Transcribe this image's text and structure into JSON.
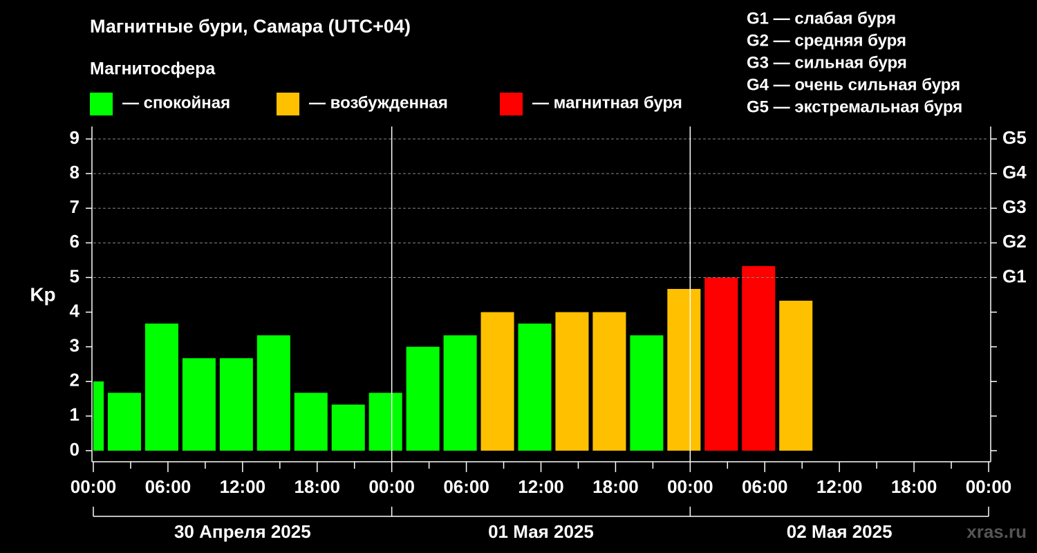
{
  "chart_data": {
    "type": "bar",
    "title": "Магнитные бури, Самара (UTC+04)",
    "subtitle": "Магнитосфера",
    "y_label": "Kp",
    "legend": [
      {
        "color": "#00ff00",
        "label": "— спокойная"
      },
      {
        "color": "#ffc000",
        "label": "— возбужденная"
      },
      {
        "color": "#ff0000",
        "label": "— магнитная буря"
      }
    ],
    "g_legend": [
      "G1 — слабая буря",
      "G2 — средняя буря",
      "G3 — сильная буря",
      "G4 — очень сильная буря",
      "G5 — экстремальная буря"
    ],
    "x": [
      -0.5,
      2.5,
      5.5,
      8.5,
      11.5,
      14.5,
      17.5,
      20.5,
      23.5,
      26.5,
      29.5,
      32.5,
      35.5,
      38.5,
      41.5,
      44.5,
      47.5,
      50.5,
      53.5,
      56.5
    ],
    "values": [
      2.0,
      1.67,
      3.67,
      2.67,
      2.67,
      3.33,
      1.67,
      1.33,
      1.67,
      3.0,
      3.33,
      4.0,
      3.67,
      4.0,
      4.0,
      3.33,
      4.67,
      5.0,
      5.33,
      4.33
    ],
    "colors": [
      "#00ff00",
      "#00ff00",
      "#00ff00",
      "#00ff00",
      "#00ff00",
      "#00ff00",
      "#00ff00",
      "#00ff00",
      "#00ff00",
      "#00ff00",
      "#00ff00",
      "#ffc000",
      "#00ff00",
      "#ffc000",
      "#ffc000",
      "#00ff00",
      "#ffc000",
      "#ff0000",
      "#ff0000",
      "#ffc000"
    ],
    "xlim": [
      0,
      72
    ],
    "xticks": [
      {
        "value": 0,
        "label": "00:00"
      },
      {
        "value": 6,
        "label": "06:00"
      },
      {
        "value": 12,
        "label": "12:00"
      },
      {
        "value": 18,
        "label": "18:00"
      },
      {
        "value": 24,
        "label": "00:00"
      },
      {
        "value": 30,
        "label": "06:00"
      },
      {
        "value": 36,
        "label": "12:00"
      },
      {
        "value": 42,
        "label": "18:00"
      },
      {
        "value": 48,
        "label": "00:00"
      },
      {
        "value": 54,
        "label": "06:00"
      },
      {
        "value": 60,
        "label": "12:00"
      },
      {
        "value": 66,
        "label": "18:00"
      },
      {
        "value": 72,
        "label": "00:00"
      }
    ],
    "days": [
      "30 Апреля 2025",
      "01 Мая 2025",
      "02 Мая 2025"
    ],
    "ylim": [
      -0.32,
      9.36
    ],
    "yticks": [
      0,
      1,
      2,
      3,
      4,
      5,
      6,
      7,
      8,
      9
    ],
    "y2ticks": [
      {
        "value": 5,
        "label": "G1"
      },
      {
        "value": 6,
        "label": "G2"
      },
      {
        "value": 7,
        "label": "G3"
      },
      {
        "value": 8,
        "label": "G4"
      },
      {
        "value": 9,
        "label": "G5"
      }
    ],
    "grid": true,
    "watermark": "xras.ru"
  }
}
